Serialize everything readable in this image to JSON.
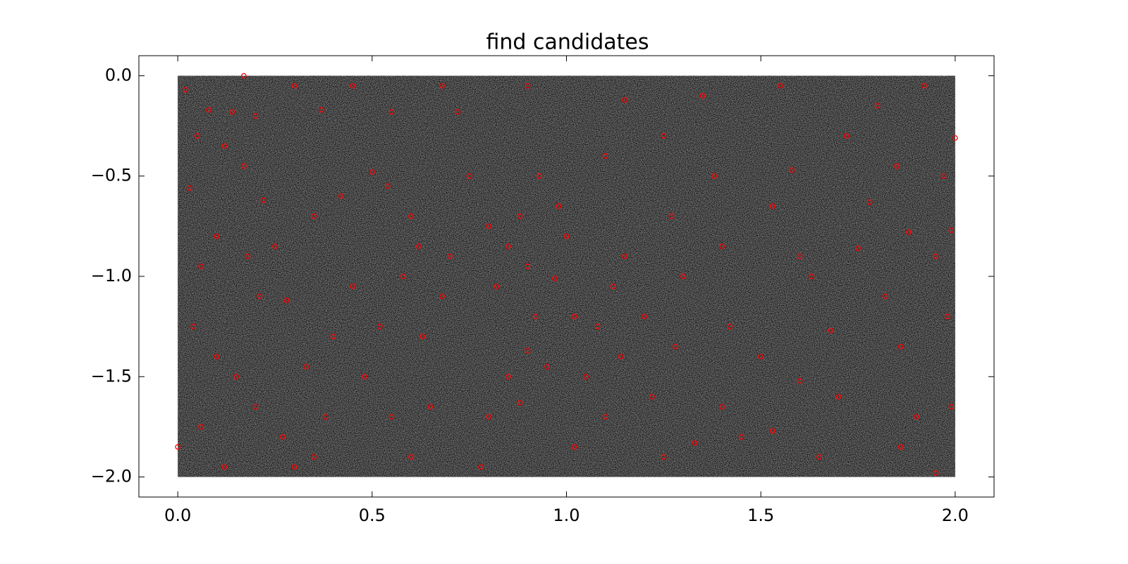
{
  "chart_data": {
    "type": "scatter",
    "title": "find candidates",
    "series": [
      {
        "color": "#ff0000",
        "x": [
          0.02,
          0.05,
          0.03,
          0.08,
          0.12,
          0.1,
          0.06,
          0.14,
          0.2,
          0.17,
          0.22,
          0.18,
          0.25,
          0.28,
          0.21,
          0.04,
          0.1,
          0.15,
          0.2,
          0.27,
          0.06,
          0.12,
          0.3,
          0.35,
          0.38,
          0.33,
          0.4,
          0.45,
          0.35,
          0.42,
          0.37,
          0.3,
          0.45,
          0.5,
          0.55,
          0.54,
          0.6,
          0.62,
          0.58,
          0.52,
          0.48,
          0.55,
          0.6,
          0.65,
          0.63,
          0.68,
          0.7,
          0.72,
          0.68,
          0.75,
          0.8,
          0.82,
          0.85,
          0.88,
          0.9,
          0.92,
          0.9,
          0.85,
          0.8,
          0.78,
          0.88,
          0.95,
          0.97,
          1.0,
          0.98,
          0.93,
          0.9,
          1.02,
          1.05,
          1.02,
          1.1,
          1.08,
          1.12,
          1.15,
          1.1,
          1.15,
          1.14,
          1.2,
          1.22,
          1.25,
          1.28,
          1.3,
          1.27,
          1.25,
          1.35,
          1.38,
          1.4,
          1.42,
          1.4,
          1.45,
          1.5,
          1.53,
          1.55,
          1.58,
          1.6,
          1.63,
          1.6,
          1.65,
          1.7,
          1.68,
          1.75,
          1.78,
          1.72,
          1.8,
          1.85,
          1.88,
          1.82,
          1.86,
          1.9,
          1.86,
          1.95,
          1.99,
          1.98,
          1.95,
          1.99,
          1.97,
          2.0,
          1.92,
          0.17,
          0.0,
          1.53,
          1.33
        ],
        "values": [
          -0.07,
          -0.3,
          -0.56,
          -0.17,
          -0.35,
          -0.8,
          -0.95,
          -0.18,
          -0.2,
          -0.45,
          -0.62,
          -0.9,
          -0.85,
          -1.12,
          -1.1,
          -1.25,
          -1.4,
          -1.5,
          -1.65,
          -1.8,
          -1.75,
          -1.95,
          -1.95,
          -1.9,
          -1.7,
          -1.45,
          -1.3,
          -1.05,
          -0.7,
          -0.6,
          -0.17,
          -0.05,
          -0.05,
          -0.48,
          -0.18,
          -0.55,
          -0.7,
          -0.85,
          -1.0,
          -1.25,
          -1.5,
          -1.7,
          -1.9,
          -1.65,
          -1.3,
          -1.1,
          -0.9,
          -0.18,
          -0.05,
          -0.5,
          -0.75,
          -1.05,
          -0.85,
          -0.7,
          -0.95,
          -1.2,
          -1.37,
          -1.5,
          -1.7,
          -1.95,
          -1.63,
          -1.45,
          -1.01,
          -0.8,
          -0.65,
          -0.5,
          -0.05,
          -1.2,
          -1.5,
          -1.85,
          -1.7,
          -1.25,
          -1.05,
          -0.9,
          -0.4,
          -0.12,
          -1.4,
          -1.2,
          -1.6,
          -1.9,
          -1.35,
          -1.0,
          -0.7,
          -0.3,
          -0.1,
          -0.5,
          -0.85,
          -1.25,
          -1.65,
          -1.8,
          -1.4,
          -0.65,
          -0.05,
          -0.47,
          -0.9,
          -1.0,
          -1.52,
          -1.9,
          -1.6,
          -1.27,
          -0.86,
          -0.63,
          -0.3,
          -0.15,
          -0.45,
          -0.78,
          -1.1,
          -1.35,
          -1.7,
          -1.85,
          -1.98,
          -1.65,
          -1.2,
          -0.9,
          -0.77,
          -0.5,
          -0.31,
          -0.05,
          0.0,
          -1.85,
          -1.77,
          -1.83
        ]
      }
    ],
    "xlim": [
      -0.1,
      2.1
    ],
    "ylim": [
      -2.1,
      0.1
    ],
    "xticks": [
      {
        "value": 0,
        "label": "0.0"
      },
      0.5,
      {
        "value": 1,
        "label": "1.0"
      },
      1.5,
      {
        "value": 2,
        "label": "2.0"
      }
    ],
    "yticks": [
      {
        "value": 0,
        "label": "0.0"
      },
      {
        "value": -0.5,
        "label": "−0.5"
      },
      {
        "value": -1,
        "label": "−1.0"
      },
      {
        "value": -1.5,
        "label": "−1.5"
      },
      {
        "value": -2,
        "label": "−2.0"
      }
    ]
  }
}
